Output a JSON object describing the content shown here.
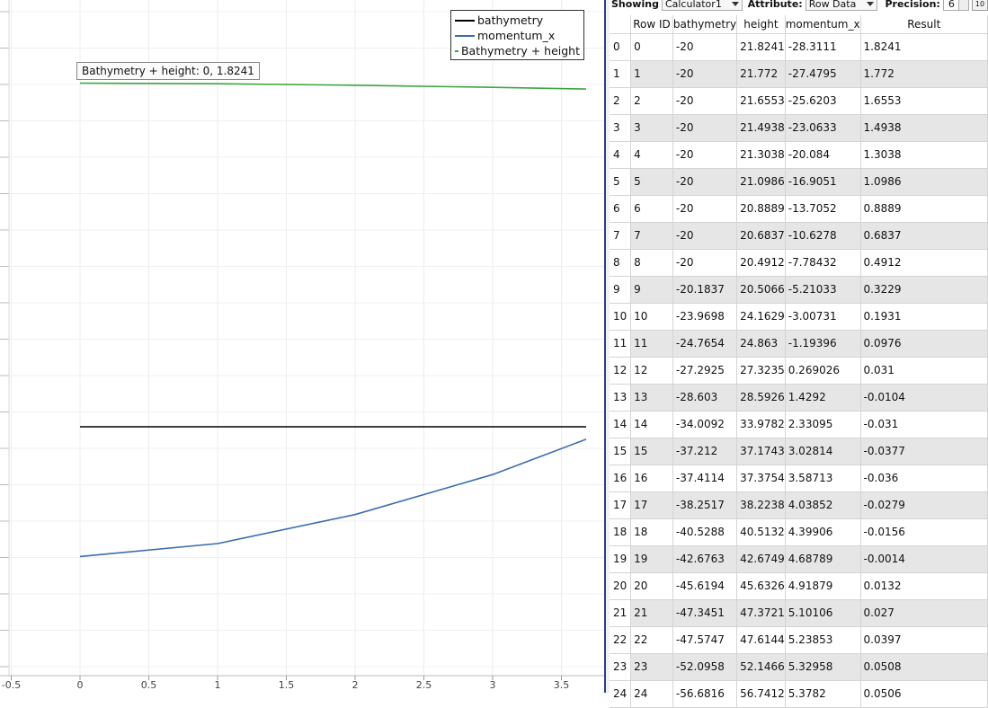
{
  "legend": {
    "items": [
      {
        "label": "bathymetry",
        "color": "#000000"
      },
      {
        "label": "momentum_x",
        "color": "#3b6cb0"
      },
      {
        "label": "Bathymetry + height",
        "color": "#3ea641"
      }
    ]
  },
  "tooltip": {
    "text": "Bathymetry + height: 0,  1.8241"
  },
  "chart_data": {
    "type": "line",
    "xlabel": "",
    "ylabel": "",
    "xlim": [
      -0.55,
      3.68
    ],
    "x_ticks": [
      "-0.5",
      "0",
      "0.5",
      "1",
      "1.5",
      "2",
      "2.5",
      "3",
      "3.5"
    ],
    "grid": true,
    "legend_position": "top-right",
    "series": [
      {
        "name": "bathymetry",
        "color": "#000000",
        "x": [
          0,
          1,
          2,
          3,
          3.68
        ],
        "y": [
          -20,
          -20,
          -20,
          -20,
          -20
        ]
      },
      {
        "name": "momentum_x",
        "color": "#3b6cb0",
        "x": [
          0,
          1,
          2,
          3,
          3.68
        ],
        "y": [
          -28.3111,
          -27.4795,
          -25.6203,
          -23.0633,
          -20.8
        ]
      },
      {
        "name": "Bathymetry + height",
        "color": "#3ea641",
        "x": [
          0,
          1,
          2,
          3,
          3.68
        ],
        "y": [
          1.8241,
          1.772,
          1.6553,
          1.4938,
          1.36
        ]
      }
    ]
  },
  "toolbar": {
    "showing_label": "Showing",
    "showing_value": "Calculator1",
    "attribute_label": "Attribute:",
    "attribute_value": "Row Data",
    "precision_label": "Precision:",
    "precision_value": "6",
    "icon_text": "10"
  },
  "table": {
    "columns": [
      "",
      "Row ID",
      "bathymetry",
      "height",
      "momentum_x",
      "Result"
    ],
    "rows": [
      [
        "0",
        "0",
        "-20",
        "21.8241",
        "-28.3111",
        "1.8241"
      ],
      [
        "1",
        "1",
        "-20",
        "21.772",
        "-27.4795",
        "1.772"
      ],
      [
        "2",
        "2",
        "-20",
        "21.6553",
        "-25.6203",
        "1.6553"
      ],
      [
        "3",
        "3",
        "-20",
        "21.4938",
        "-23.0633",
        "1.4938"
      ],
      [
        "4",
        "4",
        "-20",
        "21.3038",
        "-20.084",
        "1.3038"
      ],
      [
        "5",
        "5",
        "-20",
        "21.0986",
        "-16.9051",
        "1.0986"
      ],
      [
        "6",
        "6",
        "-20",
        "20.8889",
        "-13.7052",
        "0.8889"
      ],
      [
        "7",
        "7",
        "-20",
        "20.6837",
        "-10.6278",
        "0.6837"
      ],
      [
        "8",
        "8",
        "-20",
        "20.4912",
        "-7.78432",
        "0.4912"
      ],
      [
        "9",
        "9",
        "-20.1837",
        "20.5066",
        "-5.21033",
        "0.3229"
      ],
      [
        "10",
        "10",
        "-23.9698",
        "24.1629",
        "-3.00731",
        "0.1931"
      ],
      [
        "11",
        "11",
        "-24.7654",
        "24.863",
        "-1.19396",
        "0.0976"
      ],
      [
        "12",
        "12",
        "-27.2925",
        "27.3235",
        "0.269026",
        "0.031"
      ],
      [
        "13",
        "13",
        "-28.603",
        "28.5926",
        "1.4292",
        "-0.0104"
      ],
      [
        "14",
        "14",
        "-34.0092",
        "33.9782",
        "2.33095",
        "-0.031"
      ],
      [
        "15",
        "15",
        "-37.212",
        "37.1743",
        "3.02814",
        "-0.0377"
      ],
      [
        "16",
        "16",
        "-37.4114",
        "37.3754",
        "3.58713",
        "-0.036"
      ],
      [
        "17",
        "17",
        "-38.2517",
        "38.2238",
        "4.03852",
        "-0.0279"
      ],
      [
        "18",
        "18",
        "-40.5288",
        "40.5132",
        "4.39906",
        "-0.0156"
      ],
      [
        "19",
        "19",
        "-42.6763",
        "42.6749",
        "4.68789",
        "-0.0014"
      ],
      [
        "20",
        "20",
        "-45.6194",
        "45.6326",
        "4.91879",
        "0.0132"
      ],
      [
        "21",
        "21",
        "-47.3451",
        "47.3721",
        "5.10106",
        "0.027"
      ],
      [
        "22",
        "22",
        "-47.5747",
        "47.6144",
        "5.23853",
        "0.0397"
      ],
      [
        "23",
        "23",
        "-52.0958",
        "52.1466",
        "5.32958",
        "0.0508"
      ],
      [
        "24",
        "24",
        "-56.6816",
        "56.7412",
        "5.3782",
        "0.0506"
      ]
    ]
  }
}
